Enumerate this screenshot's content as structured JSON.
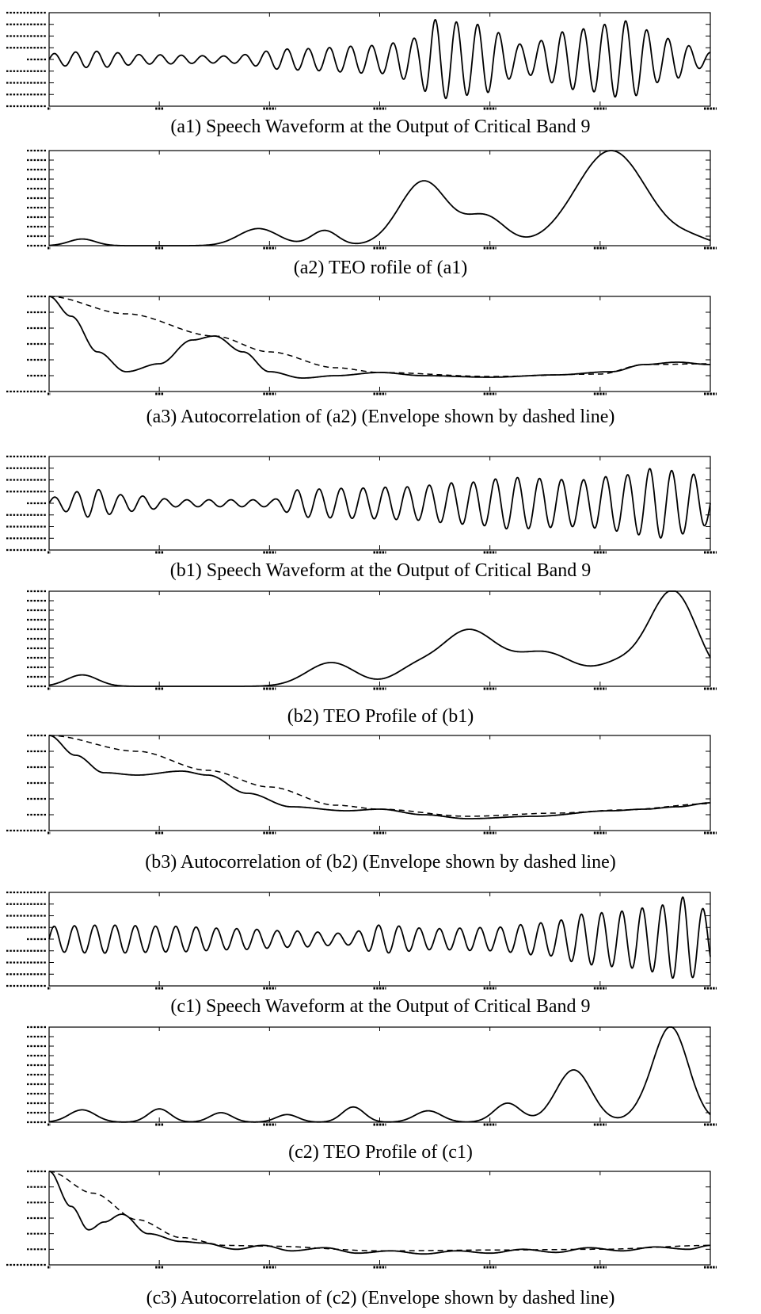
{
  "chart_data": [
    {
      "id": "a1",
      "type": "line",
      "kind": "wave",
      "caption": "(a1) Speech Waveform at the Output of Critical Band 9",
      "x": [
        0,
        300
      ],
      "ylim": [
        -20000,
        20000
      ],
      "yticks": [
        -20000,
        -15000,
        -10000,
        -5000,
        0,
        5000,
        10000,
        15000,
        20000
      ],
      "xticks": [
        0,
        50,
        100,
        150,
        200,
        250,
        300
      ],
      "period": 9.6,
      "envelope": [
        [
          0,
          2500
        ],
        [
          20,
          3500
        ],
        [
          45,
          2000
        ],
        [
          80,
          1500
        ],
        [
          110,
          4500
        ],
        [
          150,
          6000
        ],
        [
          165,
          9000
        ],
        [
          175,
          17000
        ],
        [
          195,
          15000
        ],
        [
          215,
          6500
        ],
        [
          240,
          13000
        ],
        [
          262,
          16500
        ],
        [
          280,
          9000
        ],
        [
          300,
          3000
        ]
      ]
    },
    {
      "id": "a2",
      "type": "line",
      "kind": "smooth",
      "caption": "(a2) TEO rofile of (a1)",
      "x": [
        0,
        300
      ],
      "ylim": [
        0,
        1
      ],
      "yticks": [
        0,
        0.1,
        0.2,
        0.3,
        0.4,
        0.5,
        0.6,
        0.7,
        0.8,
        0.9,
        1.0
      ],
      "xticks": [
        0,
        50,
        100,
        150,
        200,
        250,
        300
      ],
      "bumps": [
        [
          15,
          0.07,
          6
        ],
        [
          95,
          0.18,
          9
        ],
        [
          125,
          0.16,
          6
        ],
        [
          170,
          0.68,
          11
        ],
        [
          198,
          0.3,
          9
        ],
        [
          255,
          1.0,
          16
        ],
        [
          292,
          0.06,
          8
        ]
      ]
    },
    {
      "id": "a3",
      "type": "line",
      "kind": "acf",
      "caption": "(a3) Autocorrelation of (a2) (Envelope shown by dashed line)",
      "x": [
        0,
        300
      ],
      "ylim": [
        -0.2,
        1
      ],
      "yticks": [
        -0.2,
        0,
        0.2,
        0.4,
        0.6,
        0.8,
        1.0
      ],
      "xticks": [
        0,
        50,
        100,
        150,
        200,
        250,
        300
      ],
      "curve": [
        [
          0,
          1.0
        ],
        [
          10,
          0.75
        ],
        [
          22,
          0.3
        ],
        [
          35,
          0.05
        ],
        [
          50,
          0.15
        ],
        [
          65,
          0.45
        ],
        [
          75,
          0.5
        ],
        [
          88,
          0.3
        ],
        [
          100,
          0.05
        ],
        [
          115,
          -0.03
        ],
        [
          130,
          0.0
        ],
        [
          150,
          0.04
        ],
        [
          170,
          0.0
        ],
        [
          200,
          -0.02
        ],
        [
          230,
          0.01
        ],
        [
          255,
          0.05
        ],
        [
          270,
          0.14
        ],
        [
          285,
          0.17
        ],
        [
          300,
          0.14
        ]
      ],
      "envelope": [
        [
          0,
          1.0
        ],
        [
          35,
          0.78
        ],
        [
          75,
          0.5
        ],
        [
          100,
          0.3
        ],
        [
          130,
          0.1
        ],
        [
          150,
          0.04
        ],
        [
          200,
          -0.01
        ],
        [
          250,
          0.02
        ],
        [
          270,
          0.14
        ],
        [
          300,
          0.15
        ]
      ]
    },
    {
      "id": "b1",
      "type": "line",
      "kind": "wave",
      "caption": "(b1) Speech Waveform at the Output of Critical Band 9",
      "x": [
        0,
        300
      ],
      "ylim": [
        -20000,
        20000
      ],
      "yticks": [
        -20000,
        -15000,
        -10000,
        -5000,
        0,
        5000,
        10000,
        15000,
        20000
      ],
      "xticks": [
        0,
        50,
        100,
        150,
        200,
        250,
        300
      ],
      "period": 10,
      "envelope": [
        [
          0,
          2500
        ],
        [
          20,
          6000
        ],
        [
          35,
          3500
        ],
        [
          60,
          1500
        ],
        [
          100,
          1500
        ],
        [
          115,
          6000
        ],
        [
          140,
          6500
        ],
        [
          160,
          7000
        ],
        [
          190,
          9000
        ],
        [
          210,
          11000
        ],
        [
          240,
          10000
        ],
        [
          260,
          12000
        ],
        [
          275,
          15000
        ],
        [
          290,
          13000
        ],
        [
          300,
          9000
        ]
      ]
    },
    {
      "id": "b2",
      "type": "line",
      "kind": "smooth",
      "caption": "(b2) TEO Profile of (b1)",
      "x": [
        0,
        300
      ],
      "ylim": [
        0,
        1
      ],
      "yticks": [
        0,
        0.1,
        0.2,
        0.3,
        0.4,
        0.5,
        0.6,
        0.7,
        0.8,
        0.9,
        1.0
      ],
      "xticks": [
        0,
        50,
        100,
        150,
        200,
        250,
        300
      ],
      "bumps": [
        [
          15,
          0.12,
          7
        ],
        [
          128,
          0.25,
          11
        ],
        [
          165,
          0.15,
          9
        ],
        [
          190,
          0.58,
          13
        ],
        [
          225,
          0.35,
          14
        ],
        [
          258,
          0.2,
          10
        ],
        [
          283,
          1.0,
          11
        ]
      ]
    },
    {
      "id": "b3",
      "type": "line",
      "kind": "acf",
      "caption": "(b3) Autocorrelation of (b2) (Envelope shown by dashed line)",
      "x": [
        0,
        300
      ],
      "ylim": [
        -0.2,
        1
      ],
      "yticks": [
        -0.2,
        0,
        0.2,
        0.4,
        0.6,
        0.8,
        1.0
      ],
      "xticks": [
        0,
        50,
        100,
        150,
        200,
        250,
        300
      ],
      "curve": [
        [
          0,
          1.0
        ],
        [
          12,
          0.75
        ],
        [
          25,
          0.53
        ],
        [
          40,
          0.5
        ],
        [
          60,
          0.55
        ],
        [
          72,
          0.5
        ],
        [
          90,
          0.27
        ],
        [
          110,
          0.1
        ],
        [
          135,
          0.05
        ],
        [
          150,
          0.07
        ],
        [
          170,
          0.0
        ],
        [
          190,
          -0.05
        ],
        [
          220,
          -0.02
        ],
        [
          255,
          0.05
        ],
        [
          270,
          0.07
        ],
        [
          285,
          0.1
        ],
        [
          300,
          0.15
        ]
      ],
      "envelope": [
        [
          0,
          1.0
        ],
        [
          40,
          0.8
        ],
        [
          72,
          0.56
        ],
        [
          100,
          0.35
        ],
        [
          130,
          0.12
        ],
        [
          150,
          0.07
        ],
        [
          190,
          -0.02
        ],
        [
          230,
          0.02
        ],
        [
          260,
          0.06
        ],
        [
          300,
          0.14
        ]
      ]
    },
    {
      "id": "c1",
      "type": "line",
      "kind": "wave",
      "caption": "(c1) Speech Waveform at the Output of Critical Band 9",
      "x": [
        0,
        300
      ],
      "ylim": [
        -20000,
        20000
      ],
      "yticks": [
        -20000,
        -15000,
        -10000,
        -5000,
        0,
        5000,
        10000,
        15000,
        20000
      ],
      "xticks": [
        0,
        50,
        100,
        150,
        200,
        250,
        300
      ],
      "period": 9.2,
      "envelope": [
        [
          0,
          5500
        ],
        [
          25,
          6000
        ],
        [
          55,
          5500
        ],
        [
          85,
          4500
        ],
        [
          110,
          3500
        ],
        [
          135,
          2500
        ],
        [
          150,
          6000
        ],
        [
          175,
          4500
        ],
        [
          200,
          5000
        ],
        [
          225,
          7000
        ],
        [
          245,
          11000
        ],
        [
          260,
          12000
        ],
        [
          275,
          14000
        ],
        [
          288,
          18000
        ],
        [
          300,
          12000
        ]
      ]
    },
    {
      "id": "c2",
      "type": "line",
      "kind": "smooth",
      "caption": "(c2) TEO Profile of (c1)",
      "x": [
        0,
        300
      ],
      "ylim": [
        0,
        1
      ],
      "yticks": [
        0,
        0.1,
        0.2,
        0.3,
        0.4,
        0.5,
        0.6,
        0.7,
        0.8,
        0.9,
        1.0
      ],
      "xticks": [
        0,
        50,
        100,
        150,
        200,
        250,
        300
      ],
      "bumps": [
        [
          15,
          0.13,
          6
        ],
        [
          50,
          0.14,
          5
        ],
        [
          78,
          0.1,
          5
        ],
        [
          108,
          0.08,
          5
        ],
        [
          138,
          0.16,
          5
        ],
        [
          172,
          0.12,
          6
        ],
        [
          208,
          0.2,
          6
        ],
        [
          238,
          0.55,
          8
        ],
        [
          268,
          0.05,
          6
        ],
        [
          282,
          1.0,
          8
        ]
      ]
    },
    {
      "id": "c3",
      "type": "line",
      "kind": "acf",
      "caption": "(c3) Autocorrelation of (c2) (Envelope shown by dashed line)",
      "x": [
        0,
        300
      ],
      "ylim": [
        -0.2,
        1
      ],
      "yticks": [
        -0.2,
        0,
        0.2,
        0.4,
        0.6,
        0.8,
        1.0
      ],
      "xticks": [
        0,
        50,
        100,
        150,
        200,
        250,
        300
      ],
      "curve": [
        [
          0,
          1.0
        ],
        [
          10,
          0.55
        ],
        [
          18,
          0.25
        ],
        [
          25,
          0.35
        ],
        [
          33,
          0.45
        ],
        [
          45,
          0.2
        ],
        [
          60,
          0.1
        ],
        [
          70,
          0.08
        ],
        [
          85,
          0.0
        ],
        [
          97,
          0.05
        ],
        [
          110,
          -0.02
        ],
        [
          125,
          0.02
        ],
        [
          140,
          -0.05
        ],
        [
          155,
          -0.02
        ],
        [
          170,
          -0.06
        ],
        [
          185,
          -0.02
        ],
        [
          200,
          -0.05
        ],
        [
          215,
          0.0
        ],
        [
          230,
          -0.04
        ],
        [
          245,
          0.02
        ],
        [
          260,
          -0.02
        ],
        [
          275,
          0.03
        ],
        [
          290,
          0.0
        ],
        [
          300,
          0.05
        ]
      ],
      "envelope": [
        [
          0,
          1.0
        ],
        [
          20,
          0.72
        ],
        [
          40,
          0.38
        ],
        [
          60,
          0.15
        ],
        [
          80,
          0.05
        ],
        [
          100,
          0.04
        ],
        [
          150,
          -0.02
        ],
        [
          200,
          -0.01
        ],
        [
          250,
          0.0
        ],
        [
          300,
          0.05
        ]
      ]
    }
  ]
}
